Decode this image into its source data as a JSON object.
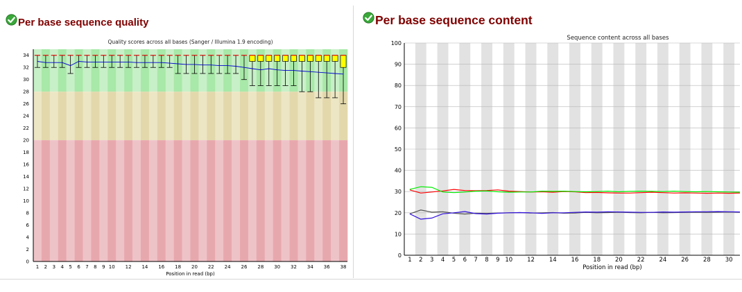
{
  "icons": {
    "status": "green-check-pass-icon"
  },
  "left_module": {
    "heading": "Per base sequence quality",
    "chart_data": {
      "type": "boxplot",
      "title": "Quality scores across all bases (Sanger / Illumina 1.9 encoding)",
      "xlabel": "Position in read (bp)",
      "ylabel": "",
      "ylim": [
        0,
        35
      ],
      "y_ticks": [
        0,
        2,
        4,
        6,
        8,
        10,
        12,
        14,
        16,
        18,
        20,
        22,
        24,
        26,
        28,
        30,
        32,
        34
      ],
      "positions": [
        1,
        2,
        3,
        4,
        5,
        6,
        7,
        8,
        9,
        10,
        11,
        12,
        13,
        14,
        15,
        16,
        17,
        18,
        19,
        20,
        21,
        22,
        23,
        24,
        25,
        26,
        27,
        28,
        29,
        30,
        31,
        32,
        33,
        34,
        35,
        36,
        37,
        38
      ],
      "x_tick_labels": [
        "1",
        "2",
        "3",
        "4",
        "5",
        "6",
        "7",
        "8",
        "9",
        "10",
        "",
        "12",
        "",
        "14",
        "",
        "16",
        "",
        "18",
        "",
        "20",
        "",
        "22",
        "",
        "24",
        "",
        "26",
        "",
        "28",
        "",
        "30",
        "",
        "32",
        "",
        "34",
        "",
        "36",
        "",
        "38"
      ],
      "zones": [
        {
          "from": 28,
          "to": 35,
          "color": "#c8f0c8",
          "color_alt": "#a8e8a8"
        },
        {
          "from": 20,
          "to": 28,
          "color": "#ede6c4",
          "color_alt": "#e2d8ac"
        },
        {
          "from": 0,
          "to": 20,
          "color": "#eec3c8",
          "color_alt": "#e7a8ad"
        }
      ],
      "series": [
        {
          "name": "",
          "color": "#0000cc",
          "mean": [
            33.0,
            32.8,
            32.8,
            32.8,
            32.3,
            33.0,
            32.9,
            32.9,
            32.9,
            32.9,
            32.9,
            32.9,
            32.8,
            32.8,
            32.8,
            32.8,
            32.7,
            32.6,
            32.5,
            32.5,
            32.4,
            32.4,
            32.3,
            32.3,
            32.2,
            32.0,
            31.8,
            31.6,
            31.8,
            31.6,
            31.5,
            31.5,
            31.4,
            31.3,
            31.2,
            31.1,
            31.0,
            30.9
          ],
          "median": [
            34,
            34,
            34,
            34,
            34,
            34,
            34,
            34,
            34,
            34,
            34,
            34,
            34,
            34,
            34,
            34,
            34,
            34,
            34,
            34,
            34,
            34,
            34,
            34,
            34,
            34,
            34,
            34,
            34,
            34,
            34,
            34,
            34,
            34,
            34,
            34,
            34,
            34
          ],
          "q1": [
            34,
            34,
            34,
            34,
            34,
            34,
            34,
            34,
            34,
            34,
            34,
            34,
            34,
            34,
            34,
            34,
            34,
            34,
            34,
            34,
            34,
            34,
            34,
            34,
            34,
            34,
            33,
            33,
            33,
            33,
            33,
            33,
            33,
            33,
            33,
            33,
            33,
            32
          ],
          "q3": [
            34,
            34,
            34,
            34,
            34,
            34,
            34,
            34,
            34,
            34,
            34,
            34,
            34,
            34,
            34,
            34,
            34,
            34,
            34,
            34,
            34,
            34,
            34,
            34,
            34,
            34,
            34,
            34,
            34,
            34,
            34,
            34,
            34,
            34,
            34,
            34,
            34,
            34
          ],
          "whisker_low": [
            32,
            32,
            32,
            32,
            31,
            32,
            32,
            32,
            32,
            32,
            32,
            32,
            32,
            32,
            32,
            32,
            32,
            31,
            31,
            31,
            31,
            31,
            31,
            31,
            31,
            30,
            29,
            29,
            29,
            29,
            29,
            29,
            28,
            28,
            27,
            27,
            27,
            26
          ],
          "whisker_high": [
            34,
            34,
            34,
            34,
            34,
            34,
            34,
            34,
            34,
            34,
            34,
            34,
            34,
            34,
            34,
            34,
            34,
            34,
            34,
            34,
            34,
            34,
            34,
            34,
            34,
            34,
            34,
            34,
            34,
            34,
            34,
            34,
            34,
            34,
            34,
            34,
            34,
            34
          ]
        }
      ],
      "box_color": "#ffff00",
      "median_color": "#ff0000",
      "grid": false
    }
  },
  "right_module": {
    "heading": "Per base sequence content",
    "chart_data": {
      "type": "line",
      "title": "Sequence content across all bases",
      "xlabel": "Position in read (bp)",
      "ylabel": "",
      "ylim": [
        0,
        100
      ],
      "y_ticks": [
        0,
        10,
        20,
        30,
        40,
        50,
        60,
        70,
        80,
        90,
        100
      ],
      "positions": [
        1,
        2,
        3,
        4,
        5,
        6,
        7,
        8,
        9,
        10,
        11,
        12,
        13,
        14,
        15,
        16,
        17,
        18,
        19,
        20,
        21,
        22,
        23,
        24,
        25,
        26,
        27,
        28,
        29,
        30,
        31
      ],
      "x_tick_labels": [
        "1",
        "2",
        "3",
        "4",
        "5",
        "6",
        "7",
        "8",
        "9",
        "10",
        "",
        "12",
        "",
        "14",
        "",
        "16",
        "",
        "18",
        "",
        "20",
        "",
        "22",
        "",
        "24",
        "",
        "26",
        "",
        "28",
        "",
        "30",
        ""
      ],
      "grid": true,
      "band_color": "#e2e2e2",
      "series": [
        {
          "name": "",
          "color": "#ff0000",
          "values": [
            30.8,
            29.3,
            29.8,
            30.3,
            31.0,
            30.5,
            30.4,
            30.5,
            30.8,
            30.2,
            30.0,
            29.8,
            29.9,
            29.7,
            30.0,
            29.9,
            29.5,
            29.6,
            29.4,
            29.3,
            29.3,
            29.5,
            29.7,
            29.5,
            29.3,
            29.4,
            29.3,
            29.2,
            29.3,
            29.2,
            29.3
          ]
        },
        {
          "name": "",
          "color": "#00ee00",
          "values": [
            31.0,
            32.3,
            32.0,
            29.8,
            29.5,
            29.8,
            30.2,
            30.3,
            29.9,
            29.7,
            29.8,
            29.8,
            30.2,
            30.1,
            30.2,
            30.0,
            29.9,
            30.0,
            30.2,
            29.9,
            30.1,
            30.2,
            30.1,
            30.0,
            30.2,
            30.0,
            29.9,
            30.0,
            29.9,
            29.8,
            29.7
          ]
        },
        {
          "name": "",
          "color": "#555555",
          "values": [
            19.5,
            21.3,
            20.3,
            20.5,
            19.8,
            19.4,
            19.8,
            19.7,
            19.9,
            20.0,
            20.1,
            19.9,
            20.0,
            20.1,
            19.8,
            19.9,
            20.2,
            20.0,
            20.1,
            20.3,
            20.1,
            20.0,
            20.2,
            20.0,
            20.1,
            20.2,
            20.3,
            20.2,
            20.3,
            20.4,
            20.3
          ]
        },
        {
          "name": "",
          "color": "#3311dd",
          "values": [
            19.5,
            17.0,
            17.5,
            19.5,
            20.0,
            20.6,
            19.6,
            19.4,
            19.8,
            20.0,
            20.1,
            20.0,
            19.7,
            20.0,
            20.0,
            20.2,
            20.4,
            20.3,
            20.5,
            20.4,
            20.3,
            20.2,
            20.2,
            20.4,
            20.3,
            20.4,
            20.5,
            20.5,
            20.6,
            20.5,
            20.4
          ]
        }
      ]
    }
  }
}
